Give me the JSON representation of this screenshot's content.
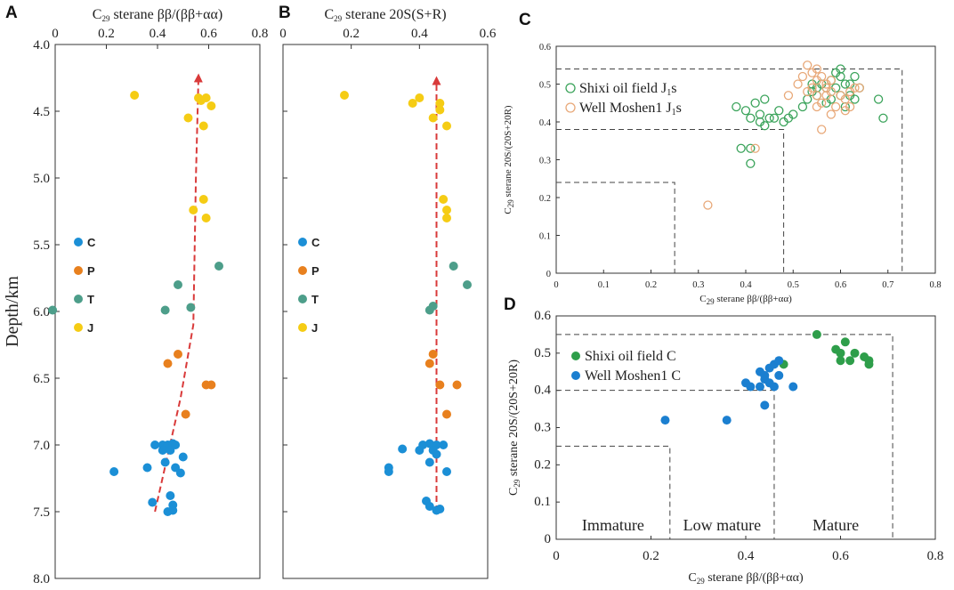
{
  "chart_data": [
    {
      "panel": "A",
      "type": "scatter",
      "title": "",
      "xlabel": "C29 sterane ββ/(ββ+αα)",
      "ylabel": "Depth/km",
      "xlim": [
        0,
        0.8
      ],
      "ylim": [
        4.0,
        8.0
      ],
      "x_ticks": [
        "0",
        "0.2",
        "0.4",
        "0.6",
        "0.8"
      ],
      "y_ticks": [
        "4.0",
        "4.5",
        "5.0",
        "5.5",
        "6.0",
        "6.5",
        "7.0",
        "7.5",
        "8.0"
      ],
      "legend": [
        "C",
        "P",
        "T",
        "J"
      ],
      "colors": {
        "C": "#1b8fd6",
        "P": "#e8801e",
        "T": "#4d9e8a",
        "J": "#f5cc14",
        "trend": "#d93a3a"
      },
      "series": [
        {
          "name": "J",
          "points": [
            [
              0.31,
              4.38
            ],
            [
              0.56,
              4.4
            ],
            [
              0.59,
              4.4
            ],
            [
              0.57,
              4.42
            ],
            [
              0.61,
              4.46
            ],
            [
              0.52,
              4.55
            ],
            [
              0.58,
              4.61
            ],
            [
              0.58,
              5.16
            ],
            [
              0.54,
              5.24
            ],
            [
              0.59,
              5.3
            ]
          ]
        },
        {
          "name": "T",
          "points": [
            [
              0.64,
              5.66
            ],
            [
              0.48,
              5.8
            ],
            [
              0.43,
              5.99
            ],
            [
              0.53,
              5.97
            ],
            [
              -0.01,
              5.99
            ]
          ]
        },
        {
          "name": "P",
          "points": [
            [
              0.48,
              6.32
            ],
            [
              0.44,
              6.39
            ],
            [
              0.59,
              6.55
            ],
            [
              0.61,
              6.55
            ],
            [
              0.51,
              6.77
            ]
          ]
        },
        {
          "name": "C",
          "points": [
            [
              0.39,
              7.0
            ],
            [
              0.42,
              7.0
            ],
            [
              0.44,
              7.0
            ],
            [
              0.46,
              6.99
            ],
            [
              0.47,
              7.0
            ],
            [
              0.42,
              7.04
            ],
            [
              0.45,
              7.04
            ],
            [
              0.5,
              7.09
            ],
            [
              0.43,
              7.13
            ],
            [
              0.36,
              7.17
            ],
            [
              0.47,
              7.17
            ],
            [
              0.23,
              7.2
            ],
            [
              0.49,
              7.21
            ],
            [
              0.45,
              7.38
            ],
            [
              0.38,
              7.43
            ],
            [
              0.46,
              7.45
            ],
            [
              0.44,
              7.5
            ],
            [
              0.46,
              7.49
            ]
          ]
        }
      ],
      "trend_line": [
        [
          0.39,
          7.5
        ],
        [
          0.49,
          6.65
        ],
        [
          0.54,
          6.1
        ],
        [
          0.55,
          5.0
        ],
        [
          0.56,
          4.25
        ]
      ]
    },
    {
      "panel": "B",
      "type": "scatter",
      "title": "",
      "xlabel": "C29 sterane 20S(S+R)",
      "ylabel": "",
      "xlim": [
        0,
        0.6
      ],
      "ylim": [
        4.0,
        8.0
      ],
      "x_ticks": [
        "0",
        "0.2",
        "0.4",
        "0.6"
      ],
      "legend": [
        "C",
        "P",
        "T",
        "J"
      ],
      "series": [
        {
          "name": "J",
          "points": [
            [
              0.18,
              4.38
            ],
            [
              0.4,
              4.4
            ],
            [
              0.38,
              4.44
            ],
            [
              0.46,
              4.44
            ],
            [
              0.46,
              4.49
            ],
            [
              0.44,
              4.55
            ],
            [
              0.48,
              4.61
            ],
            [
              0.47,
              5.16
            ],
            [
              0.48,
              5.24
            ],
            [
              0.48,
              5.3
            ]
          ]
        },
        {
          "name": "T",
          "points": [
            [
              0.5,
              5.66
            ],
            [
              0.54,
              5.8
            ],
            [
              0.43,
              5.99
            ],
            [
              0.44,
              5.96
            ]
          ]
        },
        {
          "name": "P",
          "points": [
            [
              0.44,
              6.32
            ],
            [
              0.43,
              6.39
            ],
            [
              0.46,
              6.55
            ],
            [
              0.51,
              6.55
            ],
            [
              0.48,
              6.77
            ]
          ]
        },
        {
          "name": "C",
          "points": [
            [
              0.43,
              6.99
            ],
            [
              0.45,
              7.0
            ],
            [
              0.47,
              7.0
            ],
            [
              0.41,
              7.0
            ],
            [
              0.35,
              7.03
            ],
            [
              0.4,
              7.04
            ],
            [
              0.44,
              7.04
            ],
            [
              0.45,
              7.07
            ],
            [
              0.43,
              7.13
            ],
            [
              0.31,
              7.17
            ],
            [
              0.31,
              7.2
            ],
            [
              0.48,
              7.2
            ],
            [
              0.42,
              7.42
            ],
            [
              0.43,
              7.46
            ],
            [
              0.45,
              7.49
            ],
            [
              0.46,
              7.48
            ]
          ]
        }
      ],
      "trend_line": [
        [
          0.45,
          7.5
        ],
        [
          0.45,
          4.27
        ]
      ]
    },
    {
      "panel": "C",
      "type": "scatter",
      "xlabel": "C29 sterane ββ/(ββ+αα)",
      "ylabel": "C29 sterane 20S/(20S+20R)",
      "xlim": [
        0,
        0.8
      ],
      "ylim": [
        0,
        0.6
      ],
      "x_ticks": [
        "0",
        "0.1",
        "0.2",
        "0.3",
        "0.4",
        "0.5",
        "0.6",
        "0.7",
        "0.8"
      ],
      "y_ticks": [
        "0",
        "0.1",
        "0.2",
        "0.3",
        "0.4",
        "0.5",
        "0.6"
      ],
      "legend": [
        {
          "label": "Shixi oil field J",
          "sub": "1",
          "suffix": "s"
        },
        {
          "label": "Well Moshen1 J",
          "sub": "1",
          "suffix": "s"
        }
      ],
      "colors": {
        "shixi": "#3aa35a",
        "moshen": "#e8a878"
      },
      "series": [
        {
          "name": "Shixi oil field J1s",
          "points": [
            [
              0.39,
              0.33
            ],
            [
              0.41,
              0.33
            ],
            [
              0.41,
              0.29
            ],
            [
              0.38,
              0.44
            ],
            [
              0.4,
              0.43
            ],
            [
              0.41,
              0.41
            ],
            [
              0.42,
              0.45
            ],
            [
              0.43,
              0.4
            ],
            [
              0.43,
              0.42
            ],
            [
              0.44,
              0.39
            ],
            [
              0.44,
              0.46
            ],
            [
              0.45,
              0.41
            ],
            [
              0.46,
              0.41
            ],
            [
              0.47,
              0.43
            ],
            [
              0.48,
              0.4
            ],
            [
              0.49,
              0.41
            ],
            [
              0.5,
              0.42
            ],
            [
              0.52,
              0.44
            ],
            [
              0.53,
              0.46
            ],
            [
              0.54,
              0.48
            ],
            [
              0.55,
              0.47
            ],
            [
              0.55,
              0.49
            ],
            [
              0.56,
              0.5
            ],
            [
              0.57,
              0.49
            ],
            [
              0.58,
              0.46
            ],
            [
              0.58,
              0.51
            ],
            [
              0.59,
              0.49
            ],
            [
              0.59,
              0.53
            ],
            [
              0.6,
              0.54
            ],
            [
              0.6,
              0.52
            ],
            [
              0.61,
              0.5
            ],
            [
              0.62,
              0.47
            ],
            [
              0.62,
              0.5
            ],
            [
              0.63,
              0.46
            ],
            [
              0.63,
              0.52
            ],
            [
              0.64,
              0.49
            ],
            [
              0.68,
              0.46
            ],
            [
              0.69,
              0.41
            ],
            [
              0.57,
              0.45
            ],
            [
              0.6,
              0.47
            ],
            [
              0.61,
              0.44
            ],
            [
              0.54,
              0.5
            ]
          ]
        },
        {
          "name": "Well Moshen1 J1s",
          "points": [
            [
              0.32,
              0.18
            ],
            [
              0.42,
              0.33
            ],
            [
              0.49,
              0.47
            ],
            [
              0.51,
              0.5
            ],
            [
              0.52,
              0.52
            ],
            [
              0.53,
              0.55
            ],
            [
              0.54,
              0.53
            ],
            [
              0.54,
              0.49
            ],
            [
              0.55,
              0.51
            ],
            [
              0.55,
              0.47
            ],
            [
              0.56,
              0.45
            ],
            [
              0.56,
              0.38
            ],
            [
              0.56,
              0.52
            ],
            [
              0.57,
              0.49
            ],
            [
              0.57,
              0.47
            ],
            [
              0.58,
              0.48
            ],
            [
              0.58,
              0.42
            ],
            [
              0.59,
              0.44
            ],
            [
              0.6,
              0.47
            ],
            [
              0.61,
              0.46
            ],
            [
              0.62,
              0.48
            ],
            [
              0.62,
              0.44
            ],
            [
              0.63,
              0.49
            ],
            [
              0.64,
              0.49
            ],
            [
              0.53,
              0.48
            ],
            [
              0.55,
              0.54
            ],
            [
              0.58,
              0.51
            ],
            [
              0.61,
              0.43
            ],
            [
              0.55,
              0.44
            ],
            [
              0.57,
              0.5
            ]
          ]
        }
      ],
      "dashed_boxes": [
        [
          0.25,
          0.24
        ],
        [
          0.48,
          0.38
        ],
        [
          0.73,
          0.54
        ]
      ]
    },
    {
      "panel": "D",
      "type": "scatter",
      "xlabel": "C29 sterane ββ/(ββ+αα)",
      "ylabel": "C29 sterane 20S/(20S+20R)",
      "xlim": [
        0,
        0.8
      ],
      "ylim": [
        0,
        0.6
      ],
      "x_ticks": [
        "0",
        "0.2",
        "0.4",
        "0.6",
        "0.8"
      ],
      "y_ticks": [
        "0",
        "0.1",
        "0.2",
        "0.3",
        "0.4",
        "0.5",
        "0.6"
      ],
      "legend": [
        "Shixi oil field C",
        "Well  Moshen1 C"
      ],
      "colors": {
        "shixi": "#2e9e4a",
        "moshen": "#1b7fd0"
      },
      "zones": [
        "Immature",
        "Low mature",
        "Mature"
      ],
      "series": [
        {
          "name": "Shixi oil field C",
          "points": [
            [
              0.55,
              0.55
            ],
            [
              0.61,
              0.53
            ],
            [
              0.59,
              0.51
            ],
            [
              0.6,
              0.48
            ],
            [
              0.6,
              0.5
            ],
            [
              0.62,
              0.48
            ],
            [
              0.63,
              0.5
            ],
            [
              0.65,
              0.49
            ],
            [
              0.66,
              0.48
            ],
            [
              0.66,
              0.47
            ],
            [
              0.48,
              0.47
            ]
          ]
        },
        {
          "name": "Well  Moshen1 C",
          "points": [
            [
              0.23,
              0.32
            ],
            [
              0.36,
              0.32
            ],
            [
              0.4,
              0.42
            ],
            [
              0.41,
              0.41
            ],
            [
              0.43,
              0.45
            ],
            [
              0.44,
              0.43
            ],
            [
              0.44,
              0.44
            ],
            [
              0.45,
              0.42
            ],
            [
              0.45,
              0.46
            ],
            [
              0.46,
              0.47
            ],
            [
              0.46,
              0.41
            ],
            [
              0.47,
              0.48
            ],
            [
              0.47,
              0.44
            ],
            [
              0.44,
              0.36
            ],
            [
              0.5,
              0.41
            ],
            [
              0.43,
              0.41
            ]
          ]
        }
      ],
      "dashed_boxes": [
        [
          0.24,
          0.25
        ],
        [
          0.46,
          0.4
        ],
        [
          0.71,
          0.55
        ]
      ]
    }
  ]
}
